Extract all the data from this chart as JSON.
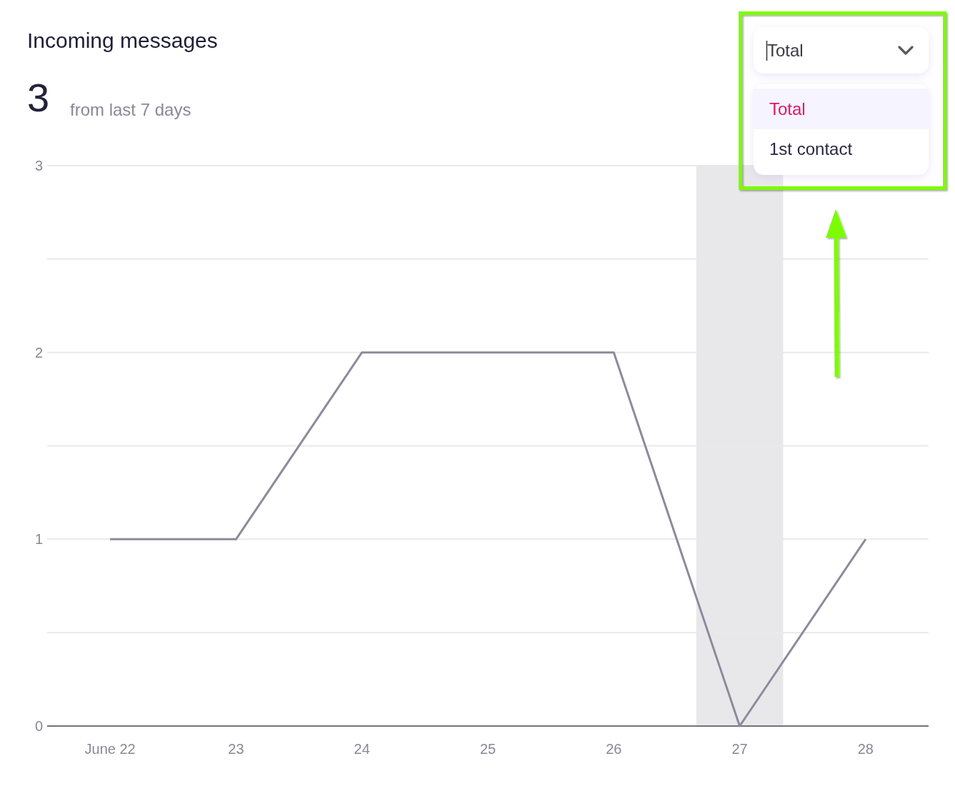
{
  "chart_data": {
    "type": "line",
    "title": "Incoming messages",
    "categories": [
      "June 22",
      "23",
      "24",
      "25",
      "26",
      "27",
      "28"
    ],
    "series": [
      {
        "color": "#8e8a9b",
        "values": [
          1,
          1,
          2,
          2,
          2,
          0,
          1
        ]
      }
    ],
    "ylim": [
      0,
      3
    ],
    "yticks": [
      0,
      {
        "value": 0.5,
        "label": null
      },
      1,
      {
        "value": 1.5,
        "label": null
      },
      2,
      {
        "value": 2.5,
        "label": null
      },
      3
    ],
    "grid": "y",
    "line_style": "solid",
    "bands": [
      {
        "axis": "x",
        "from": "27",
        "to": "27",
        "color": "#e8e8eb"
      }
    ],
    "annotations": [
      "3",
      "from last 7 days",
      "Total",
      "Total",
      "1st contact"
    ]
  }
}
